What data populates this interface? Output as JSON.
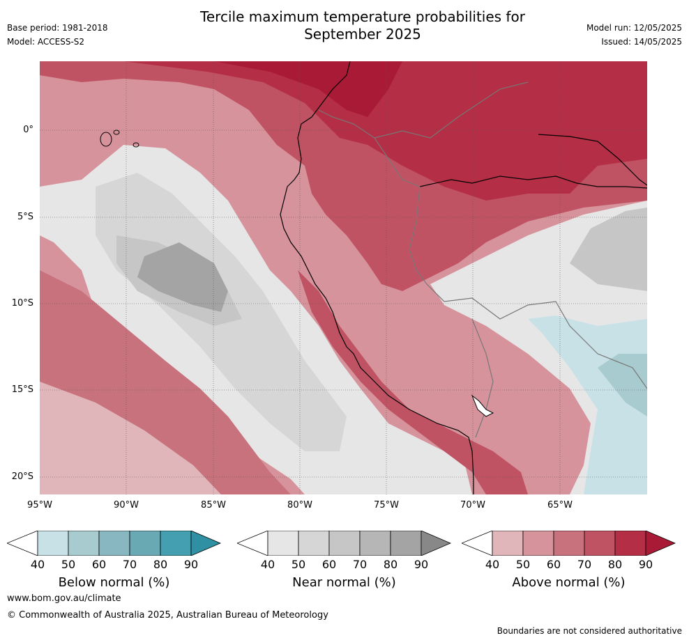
{
  "title_line1": "Tercile maximum temperature probabilities for",
  "title_line2": "September 2025",
  "base_period": "Base period: 1981-2018",
  "model": "Model: ACCESS-S2",
  "model_run": "Model run: 12/05/2025",
  "issued": "Issued: 14/05/2025",
  "y_ticks": [
    "0°",
    "5°S",
    "10°S",
    "15°S",
    "20°S"
  ],
  "x_ticks": [
    "95°W",
    "90°W",
    "85°W",
    "80°W",
    "75°W",
    "70°W",
    "65°W"
  ],
  "colorbars": [
    {
      "label": "Below normal (%)",
      "ticks": [
        "40",
        "50",
        "60",
        "70",
        "80",
        "90"
      ],
      "colors": [
        "#c8e1e6",
        "#a8cbd0",
        "#88b7c1",
        "#68a9b4",
        "#44a0b0",
        "#2f8fa3"
      ]
    },
    {
      "label": "Near normal (%)",
      "ticks": [
        "40",
        "50",
        "60",
        "70",
        "80",
        "90"
      ],
      "colors": [
        "#e6e6e6",
        "#d6d6d6",
        "#c6c6c6",
        "#b6b6b6",
        "#a4a4a4",
        "#888888"
      ]
    },
    {
      "label": "Above normal (%)",
      "ticks": [
        "40",
        "50",
        "60",
        "70",
        "80",
        "90"
      ],
      "colors": [
        "#e0b6bb",
        "#d6939b",
        "#c8727d",
        "#c05363",
        "#b42f45",
        "#a81a35"
      ]
    }
  ],
  "website": "www.bom.gov.au/climate",
  "copyright": "© Commonwealth of Australia 2025, Australian Bureau of Meteorology",
  "disclaimer": "Boundaries are not considered authoritative"
}
